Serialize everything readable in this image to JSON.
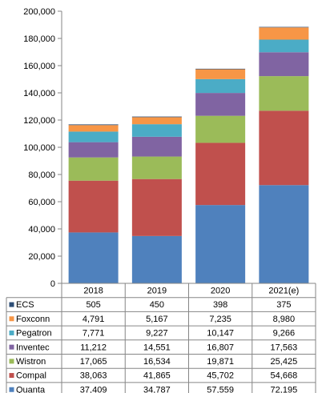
{
  "chart_data": {
    "type": "bar",
    "stacked": true,
    "categories": [
      "2018",
      "2019",
      "2020",
      "2021(e)"
    ],
    "ylim": [
      0,
      200000
    ],
    "yticks": [
      "0",
      "20,000",
      "40,000",
      "60,000",
      "80,000",
      "100,000",
      "120,000",
      "140,000",
      "160,000",
      "180,000",
      "200,000"
    ],
    "grid": false,
    "legend_placement": "table-below",
    "series": [
      {
        "name": "Quanta",
        "color": "#4f81bd",
        "values": [
          37409,
          34787,
          57559,
          72195
        ],
        "labels": [
          "37,409",
          "34,787",
          "57,559",
          "72,195"
        ]
      },
      {
        "name": "Compal",
        "color": "#c0504d",
        "values": [
          38063,
          41865,
          45702,
          54668
        ],
        "labels": [
          "38,063",
          "41,865",
          "45,702",
          "54,668"
        ]
      },
      {
        "name": "Wistron",
        "color": "#9bbb59",
        "values": [
          17065,
          16534,
          19871,
          25425
        ],
        "labels": [
          "17,065",
          "16,534",
          "19,871",
          "25,425"
        ]
      },
      {
        "name": "Inventec",
        "color": "#8064a2",
        "values": [
          11212,
          14551,
          16807,
          17563
        ],
        "labels": [
          "11,212",
          "14,551",
          "16,807",
          "17,563"
        ]
      },
      {
        "name": "Pegatron",
        "color": "#4bacc6",
        "values": [
          7771,
          9227,
          10147,
          9266
        ],
        "labels": [
          "7,771",
          "9,227",
          "10,147",
          "9,266"
        ]
      },
      {
        "name": "Foxconn",
        "color": "#f79646",
        "values": [
          4791,
          5167,
          7235,
          8980
        ],
        "labels": [
          "4,791",
          "5,167",
          "7,235",
          "8,980"
        ]
      },
      {
        "name": "ECS",
        "color": "#2c4d75",
        "values": [
          505,
          450,
          398,
          375
        ],
        "labels": [
          "505",
          "450",
          "398",
          "375"
        ]
      }
    ]
  }
}
